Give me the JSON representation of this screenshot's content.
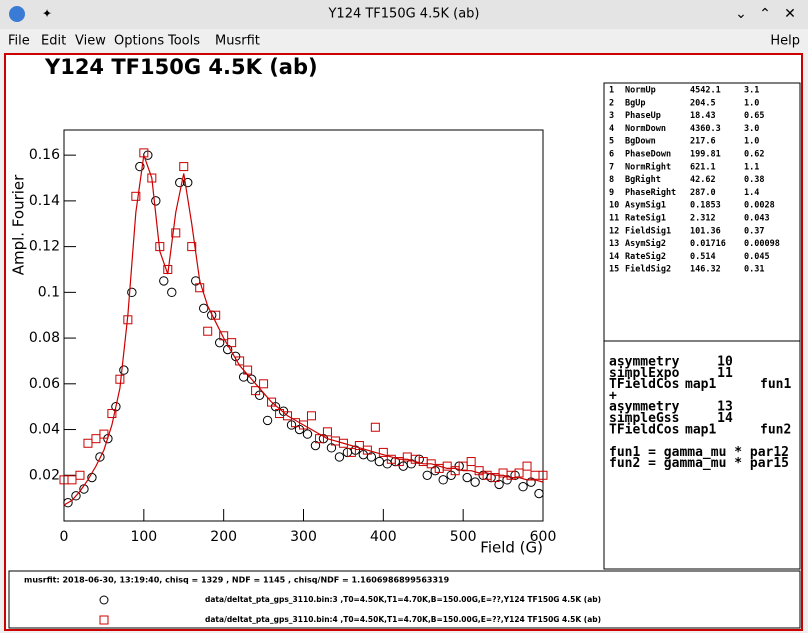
{
  "window": {
    "title": "Y124 TF150G 4.5K (ab)"
  },
  "menu": [
    "File",
    "Edit",
    "View",
    "Options",
    "Tools",
    "Musrfit"
  ],
  "help": "Help",
  "chart_data": {
    "type": "scatter",
    "title": "Y124 TF150G 4.5K (ab)",
    "x_label": "Field (G)",
    "y_label": "Ampl. Fourier",
    "xlim": [
      0,
      600
    ],
    "ylim": [
      0,
      0.171
    ],
    "xticks": [
      0,
      100,
      200,
      300,
      400,
      500,
      600
    ],
    "yticks": [
      0.02,
      0.04,
      0.06,
      0.08,
      0.1,
      0.12,
      0.14,
      0.16
    ],
    "series": [
      {
        "mode": "circle",
        "color": "#000000",
        "x": [
          5,
          15,
          25,
          35,
          45,
          55,
          65,
          75,
          85,
          95,
          105,
          115,
          125,
          135,
          145,
          155,
          165,
          175,
          185,
          195,
          205,
          215,
          225,
          235,
          245,
          255,
          265,
          275,
          285,
          295,
          305,
          315,
          325,
          335,
          345,
          355,
          365,
          375,
          385,
          395,
          405,
          415,
          425,
          435,
          445,
          455,
          465,
          475,
          485,
          495,
          505,
          515,
          525,
          535,
          545,
          555,
          565,
          575,
          585,
          595
        ],
        "values": [
          0.008,
          0.011,
          0.014,
          0.019,
          0.028,
          0.036,
          0.05,
          0.066,
          0.1,
          0.155,
          0.16,
          0.14,
          0.105,
          0.1,
          0.148,
          0.148,
          0.105,
          0.093,
          0.09,
          0.078,
          0.075,
          0.072,
          0.063,
          0.062,
          0.055,
          0.044,
          0.05,
          0.048,
          0.042,
          0.04,
          0.038,
          0.033,
          0.036,
          0.032,
          0.028,
          0.03,
          0.031,
          0.029,
          0.028,
          0.026,
          0.025,
          0.026,
          0.024,
          0.025,
          0.027,
          0.02,
          0.022,
          0.018,
          0.02,
          0.024,
          0.019,
          0.017,
          0.02,
          0.019,
          0.016,
          0.018,
          0.02,
          0.015,
          0.017,
          0.012
        ]
      },
      {
        "mode": "square",
        "color": "#cc0000",
        "x": [
          0,
          10,
          20,
          30,
          40,
          50,
          60,
          70,
          80,
          90,
          100,
          110,
          120,
          130,
          140,
          150,
          160,
          170,
          180,
          190,
          200,
          210,
          220,
          230,
          240,
          250,
          260,
          270,
          280,
          290,
          300,
          310,
          320,
          330,
          340,
          350,
          360,
          370,
          380,
          390,
          400,
          410,
          420,
          430,
          440,
          450,
          460,
          470,
          480,
          490,
          500,
          510,
          520,
          530,
          540,
          550,
          560,
          570,
          580,
          590,
          600
        ],
        "values": [
          0.018,
          0.018,
          0.02,
          0.034,
          0.036,
          0.038,
          0.047,
          0.062,
          0.088,
          0.142,
          0.161,
          0.15,
          0.12,
          0.11,
          0.126,
          0.155,
          0.12,
          0.102,
          0.083,
          0.09,
          0.081,
          0.078,
          0.07,
          0.066,
          0.057,
          0.06,
          0.052,
          0.047,
          0.046,
          0.043,
          0.042,
          0.046,
          0.036,
          0.039,
          0.035,
          0.034,
          0.03,
          0.033,
          0.031,
          0.041,
          0.03,
          0.027,
          0.026,
          0.028,
          0.027,
          0.026,
          0.025,
          0.023,
          0.024,
          0.022,
          0.024,
          0.026,
          0.022,
          0.02,
          0.019,
          0.021,
          0.02,
          0.021,
          0.024,
          0.02,
          0.02
        ]
      },
      {
        "mode": "line",
        "color": "#cc0000",
        "x": [
          0,
          10,
          20,
          30,
          40,
          50,
          60,
          70,
          80,
          90,
          100,
          110,
          120,
          130,
          140,
          150,
          160,
          170,
          180,
          190,
          200,
          210,
          220,
          230,
          240,
          250,
          260,
          270,
          280,
          290,
          300,
          310,
          320,
          330,
          340,
          350,
          360,
          370,
          380,
          390,
          400,
          410,
          420,
          430,
          440,
          450,
          460,
          470,
          480,
          490,
          500,
          510,
          520,
          530,
          540,
          550,
          560,
          570,
          580,
          590,
          600
        ],
        "values": [
          0.007,
          0.009,
          0.013,
          0.018,
          0.024,
          0.031,
          0.042,
          0.058,
          0.09,
          0.135,
          0.16,
          0.15,
          0.118,
          0.108,
          0.135,
          0.152,
          0.13,
          0.105,
          0.094,
          0.087,
          0.08,
          0.074,
          0.068,
          0.064,
          0.06,
          0.056,
          0.052,
          0.049,
          0.046,
          0.044,
          0.042,
          0.04,
          0.038,
          0.036,
          0.035,
          0.034,
          0.033,
          0.032,
          0.031,
          0.03,
          0.029,
          0.028,
          0.027,
          0.027,
          0.026,
          0.025,
          0.025,
          0.024,
          0.023,
          0.023,
          0.022,
          0.022,
          0.021,
          0.021,
          0.02,
          0.02,
          0.019,
          0.019,
          0.018,
          0.018,
          0.017
        ]
      }
    ]
  },
  "parameters": [
    [
      "1",
      "NormUp",
      "4542.1",
      "3.1"
    ],
    [
      "2",
      "BgUp",
      "204.5",
      "1.0"
    ],
    [
      "3",
      "PhaseUp",
      "18.43",
      "0.65"
    ],
    [
      "4",
      "NormDown",
      "4360.3",
      "3.0"
    ],
    [
      "5",
      "BgDown",
      "217.6",
      "1.0"
    ],
    [
      "6",
      "PhaseDown",
      "199.81",
      "0.62"
    ],
    [
      "7",
      "NormRight",
      "621.1",
      "1.1"
    ],
    [
      "8",
      "BgRight",
      "42.62",
      "0.38"
    ],
    [
      "9",
      "PhaseRight",
      "287.0",
      "1.4"
    ],
    [
      "10",
      "AsymSig1",
      "0.1853",
      "0.0028"
    ],
    [
      "11",
      "RateSig1",
      "2.312",
      "0.043"
    ],
    [
      "12",
      "FieldSig1",
      "101.36",
      "0.37"
    ],
    [
      "13",
      "AsymSig2",
      "0.01716",
      "0.00098"
    ],
    [
      "14",
      "RateSig2",
      "0.514",
      "0.045"
    ],
    [
      "15",
      "FieldSig2",
      "146.32",
      "0.31"
    ]
  ],
  "theory": [
    [
      "asymmetry",
      "10"
    ],
    [
      "simplExpo",
      "11"
    ],
    [
      "TFieldCos",
      "map1",
      "fun1"
    ],
    [
      "+"
    ],
    [
      "asymmetry",
      "13"
    ],
    [
      "simpleGss",
      "14"
    ],
    [
      "TFieldCos",
      "map1",
      "fun2"
    ],
    [],
    [
      "fun1 = gamma_mu * par12"
    ],
    [
      "fun2 = gamma_mu * par15"
    ]
  ],
  "footer": {
    "summary": "musrfit: 2018-06-30, 13:19:40, chisq = 1329 , NDF = 1145 , chisq/NDF = 1.1606986899563319",
    "entries": [
      "data/deltat_pta_gps_3110.bin:3 ,T0=4.50K,T1=4.70K,B=150.00G,E=??,Y124 TF150G 4.5K (ab)",
      "data/deltat_pta_gps_3110.bin:4 ,T0=4.50K,T1=4.70K,B=150.00G,E=??,Y124 TF150G 4.5K (ab)"
    ]
  }
}
